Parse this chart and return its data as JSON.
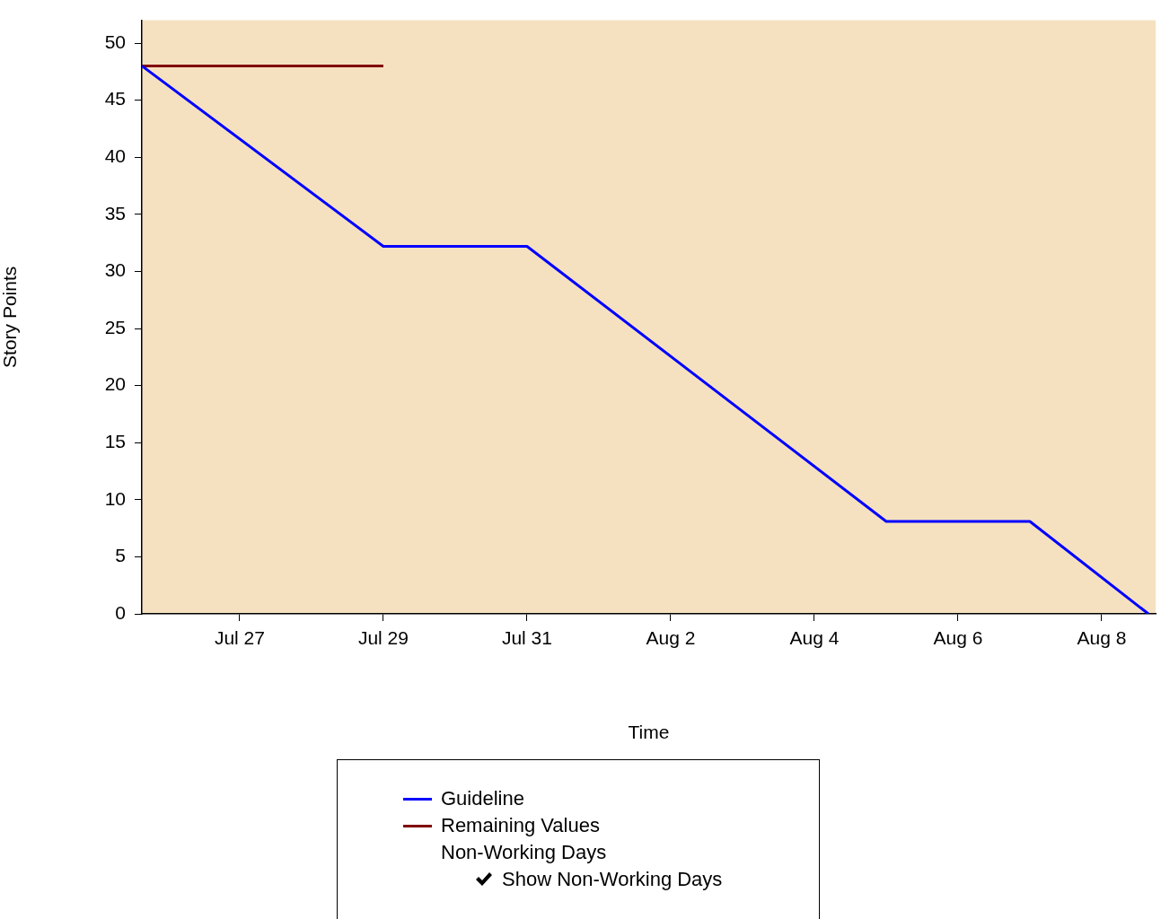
{
  "chart_data": {
    "type": "line",
    "xlabel": "Time",
    "ylabel": "Story Points",
    "xlim": [
      "--07-25T15:20",
      "--08-08T18:00"
    ],
    "xticks": [
      {
        "value": "--07-27",
        "label": "Jul 27"
      },
      {
        "value": "--07-29",
        "label": "Jul 29"
      },
      {
        "value": "--07-31",
        "label": "Jul 31"
      },
      {
        "value": "--08-02",
        "label": "Aug 2"
      },
      {
        "value": "--08-04",
        "label": "Aug 4"
      },
      {
        "value": "--08-06",
        "label": "Aug 6"
      },
      {
        "value": "--08-08",
        "label": "Aug 8"
      }
    ],
    "ylim": [
      0,
      52
    ],
    "yticks": [
      0,
      5,
      10,
      15,
      20,
      25,
      30,
      35,
      40,
      45,
      50
    ],
    "grid": false,
    "legend": "bottom",
    "marker": "none",
    "line_style": "solid",
    "series": [
      {
        "name": "Guideline",
        "color": "#0000ff",
        "x": [
          "--07-25T15:20",
          "--07-29",
          "--07-31",
          "--08-05",
          "--08-07",
          "--08-08T15:36"
        ],
        "values": [
          48,
          32.2,
          32.2,
          8.1,
          8.1,
          0
        ]
      },
      {
        "name": "Remaining Values",
        "color": "#800000",
        "x": [
          "--07-25T15:20",
          "--07-29"
        ],
        "values": [
          48,
          48
        ]
      }
    ],
    "annotations": [
      "Non-Working Days",
      "Show Non-Working Days"
    ]
  }
}
